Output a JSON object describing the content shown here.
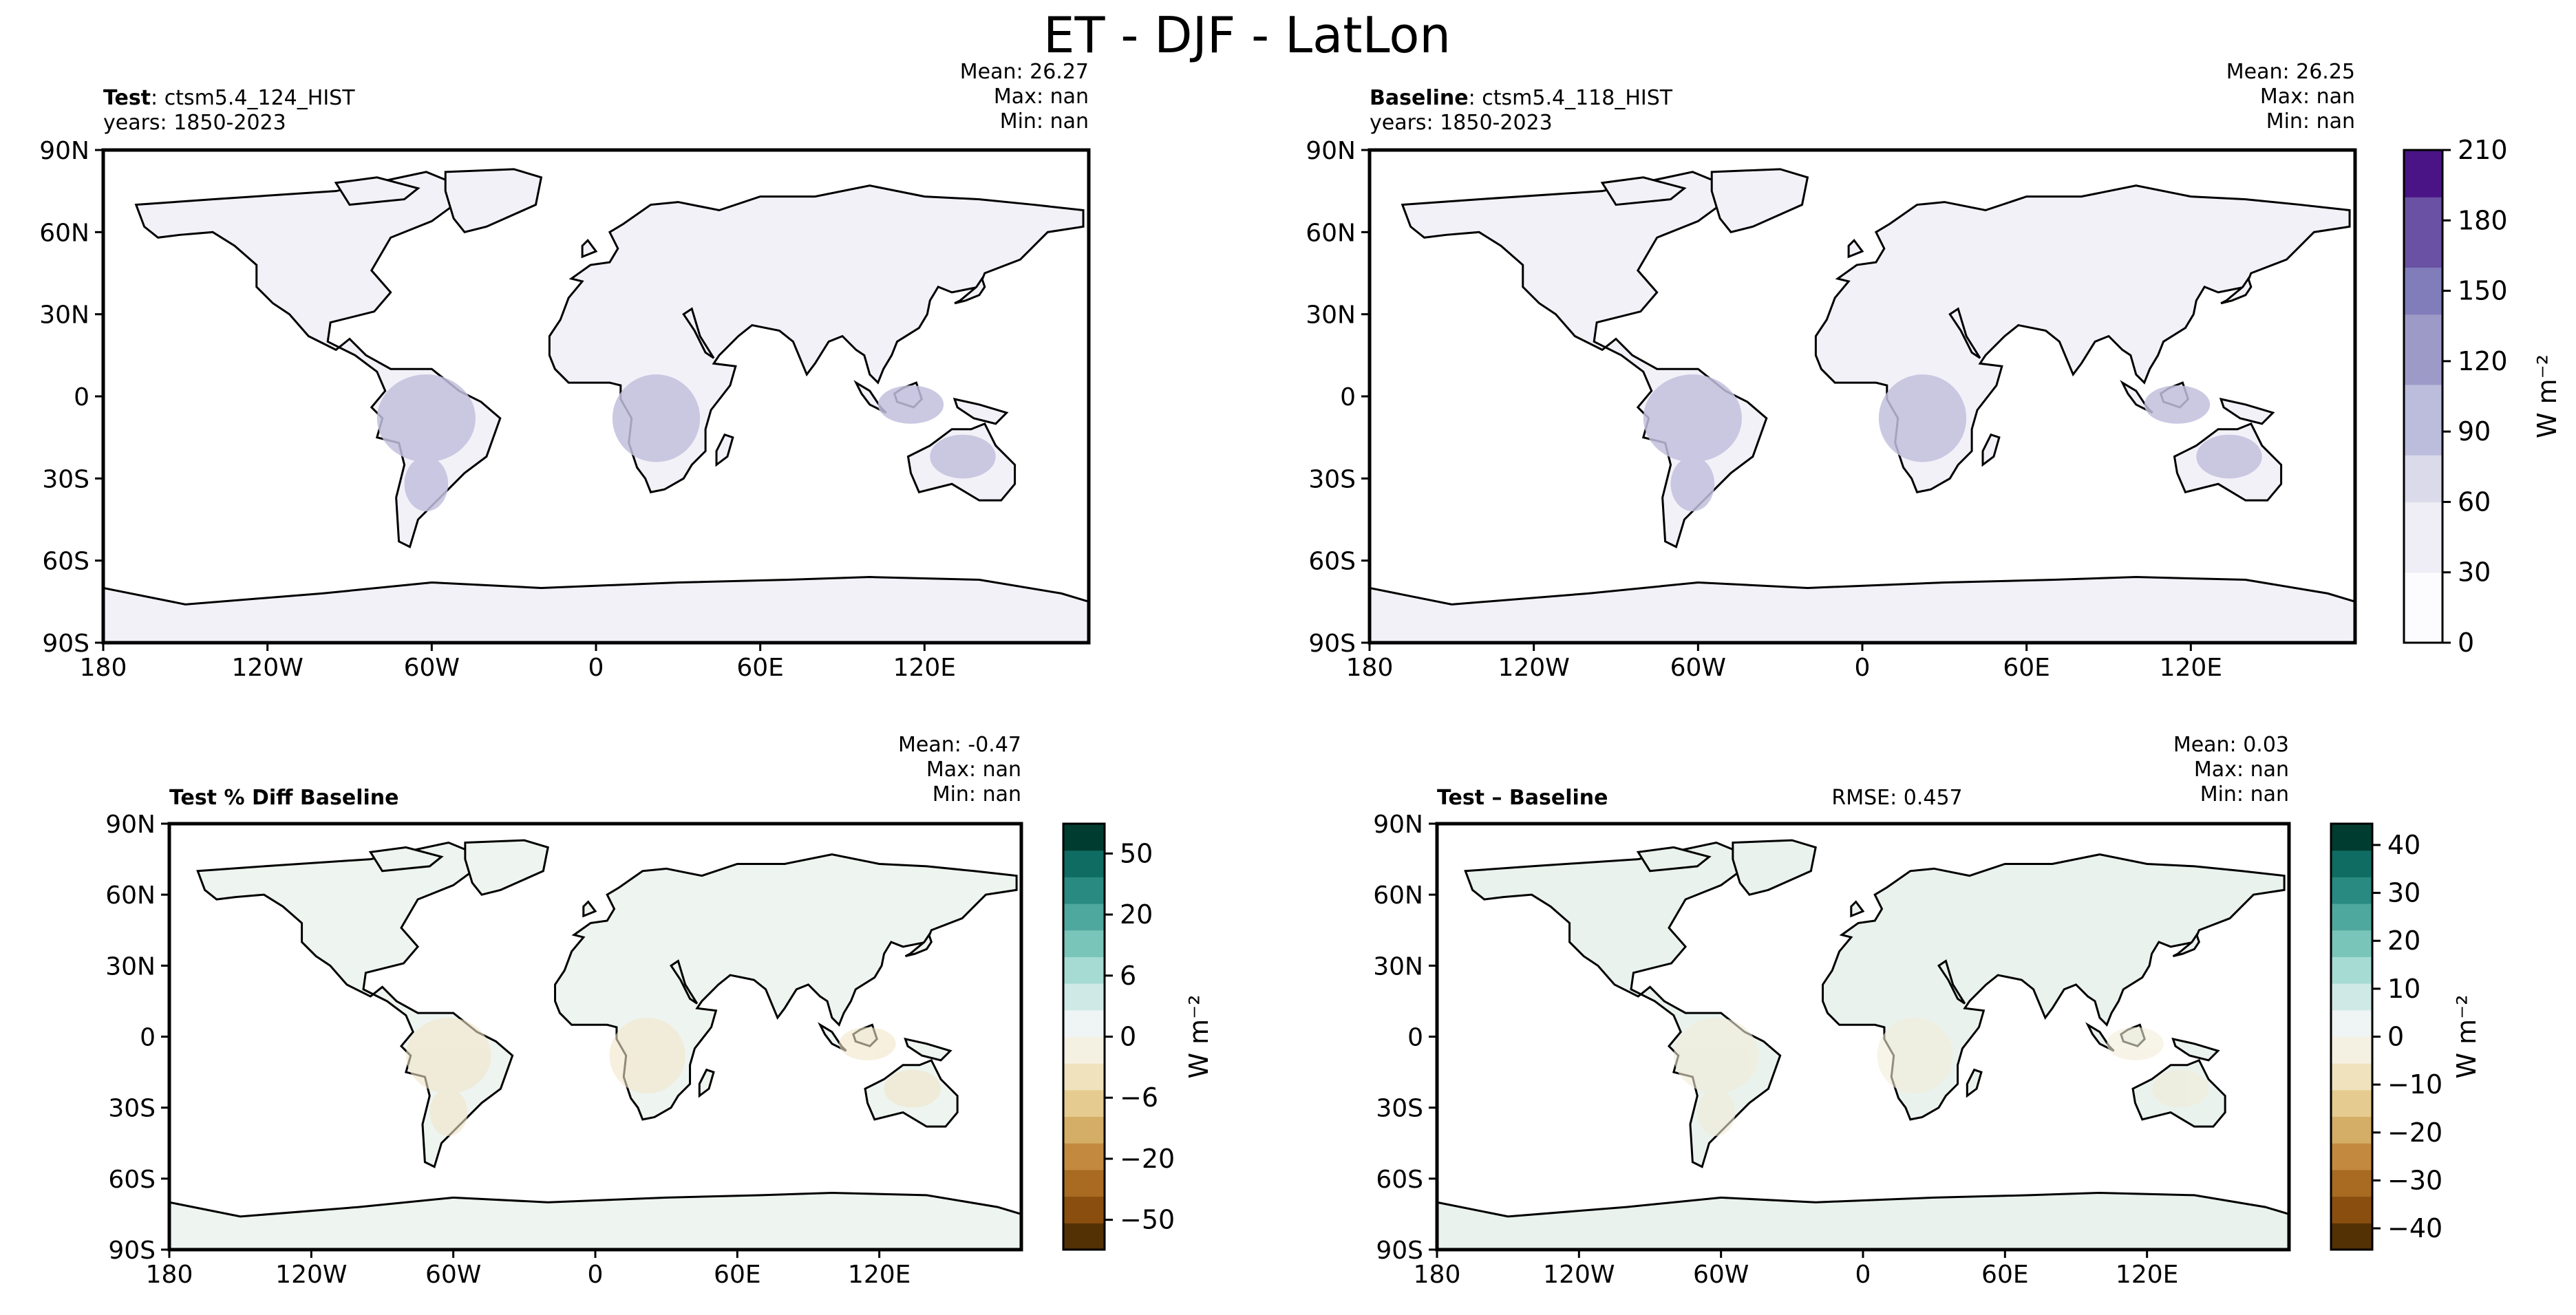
{
  "figure_title": "ET - DJF - LatLon",
  "chart_data": [
    {
      "type": "heatmap",
      "id": "test",
      "label_bold": "Test",
      "label_text": "ctsm5.4_124_HIST",
      "years_line": "years: 1850-2023",
      "stats": {
        "mean": "Mean: 26.27",
        "max": "Max:   nan",
        "min": "Min:   nan"
      },
      "xticks": [
        "180",
        "120W",
        "60W",
        "0",
        "60E",
        "120E"
      ],
      "yticks": [
        "90N",
        "60N",
        "30N",
        "0",
        "30S",
        "60S",
        "90S"
      ],
      "xlim": [
        -180,
        180
      ],
      "ylim": [
        -90,
        90
      ],
      "variable": "ET (DJF mean)",
      "units": "W m⁻²"
    },
    {
      "type": "heatmap",
      "id": "baseline",
      "label_bold": "Baseline",
      "label_text": "ctsm5.4_118_HIST",
      "years_line": "years: 1850-2023",
      "stats": {
        "mean": "Mean: 26.25",
        "max": "Max:   nan",
        "min": "Min:   nan"
      },
      "xticks": [
        "180",
        "120W",
        "60W",
        "0",
        "60E",
        "120E"
      ],
      "yticks": [
        "90N",
        "60N",
        "30N",
        "0",
        "30S",
        "60S",
        "90S"
      ],
      "xlim": [
        -180,
        180
      ],
      "ylim": [
        -90,
        90
      ],
      "variable": "ET (DJF mean)",
      "units": "W m⁻²"
    },
    {
      "type": "heatmap",
      "id": "pctdiff",
      "label_bold": "Test % Diff Baseline",
      "stats": {
        "mean": "Mean: -0.47",
        "max": "Max:   nan",
        "min": "Min:   nan"
      },
      "xticks": [
        "180",
        "120W",
        "60W",
        "0",
        "60E",
        "120E"
      ],
      "yticks": [
        "90N",
        "60N",
        "30N",
        "0",
        "30S",
        "60S",
        "90S"
      ],
      "xlim": [
        -180,
        180
      ],
      "ylim": [
        -90,
        90
      ],
      "variable": "percent difference",
      "units": "W m⁻²"
    },
    {
      "type": "heatmap",
      "id": "diff",
      "label_bold": "Test – Baseline",
      "rmse": "RMSE: 0.457",
      "stats": {
        "mean": "Mean:  0.03",
        "max": "Max:   nan",
        "min": "Min:   nan"
      },
      "xticks": [
        "180",
        "120W",
        "60W",
        "0",
        "60E",
        "120E"
      ],
      "yticks": [
        "90N",
        "60N",
        "30N",
        "0",
        "30S",
        "60S",
        "90S"
      ],
      "xlim": [
        -180,
        180
      ],
      "ylim": [
        -90,
        90
      ],
      "variable": "difference",
      "units": "W m⁻²"
    }
  ],
  "colorbars": {
    "main": {
      "ticks": [
        "0",
        "30",
        "60",
        "90",
        "120",
        "150",
        "180",
        "210"
      ],
      "range": [
        0,
        210
      ],
      "label": "W m⁻²",
      "colors": [
        "#fcfbfd",
        "#efedf5",
        "#dadaeb",
        "#bcbddc",
        "#9e9ac8",
        "#807dba",
        "#6a51a3",
        "#4a1486"
      ]
    },
    "pctdiff": {
      "ticks": [
        "−50",
        "−20",
        "−6",
        "0",
        "6",
        "20",
        "50"
      ],
      "label": "W m⁻²",
      "colors_neg": [
        "#f5f1e2",
        "#f0e2bd",
        "#e5cb8f",
        "#d4ad66",
        "#c38a3f",
        "#a96a22",
        "#8a4f0f",
        "#543005"
      ],
      "colors_pos": [
        "#eef5f4",
        "#cfeae6",
        "#a6dbd3",
        "#7ac5ba",
        "#4fa89d",
        "#288a80",
        "#0f6c62",
        "#003c30"
      ]
    },
    "diff": {
      "ticks": [
        "−40",
        "−30",
        "−20",
        "−10",
        "0",
        "10",
        "20",
        "30",
        "40"
      ],
      "range": [
        -40,
        40
      ],
      "label": "W m⁻²",
      "colors_neg": [
        "#f5f1e2",
        "#f0e2bd",
        "#e5cb8f",
        "#d4ad66",
        "#c38a3f",
        "#a96a22",
        "#8a4f0f",
        "#543005"
      ],
      "colors_pos": [
        "#eef5f4",
        "#cfeae6",
        "#a6dbd3",
        "#7ac5ba",
        "#4fa89d",
        "#288a80",
        "#0f6c62",
        "#003c30"
      ]
    }
  }
}
